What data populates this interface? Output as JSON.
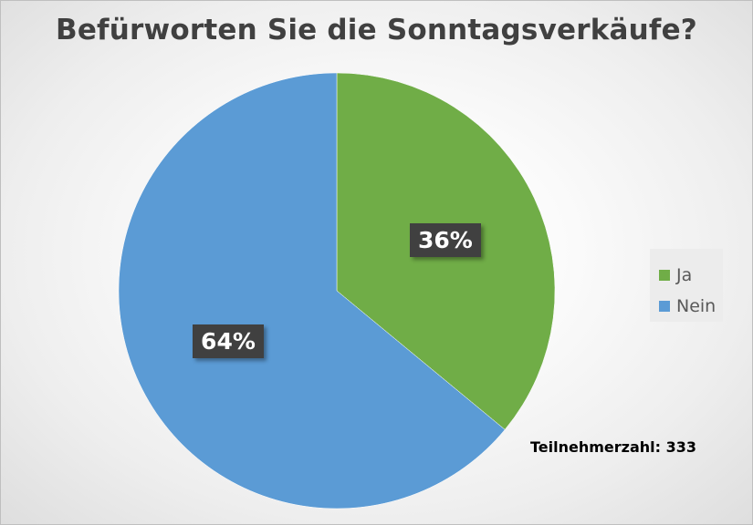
{
  "chart_data": {
    "type": "pie",
    "title": "Befürworten Sie die Sonntagsverkäufe?",
    "categories": [
      "Ja",
      "Nein"
    ],
    "values": [
      36,
      64
    ],
    "value_labels": [
      "36%",
      "64%"
    ],
    "colors": [
      "#70ad47",
      "#5b9bd5"
    ],
    "legend_position": "right",
    "annotation": "Teilnehmerzahl: 333"
  }
}
